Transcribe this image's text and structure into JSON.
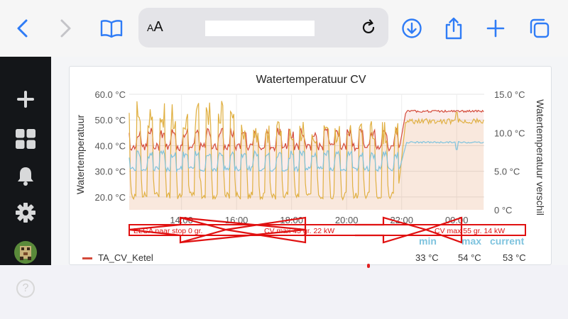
{
  "browser": {
    "aa_label": "AA",
    "url": ""
  },
  "panel": {
    "title": "Watertemperatuur CV"
  },
  "annotations": {
    "a1": "ELGA naar stop 0 gr.",
    "a2": "CV max 45 gr. 22 kW",
    "a3": "CV max 55 gr. 14 kW"
  },
  "legend": {
    "headers": {
      "min": "min",
      "max": "max",
      "current": "current"
    },
    "items": [
      {
        "name": "TA_CV_Ketel",
        "min": "33 °C",
        "max": "54 °C",
        "current": "53 °C",
        "color": "#d44a3a"
      }
    ]
  },
  "chart_data": {
    "type": "line",
    "title": "Watertemperatuur CV",
    "ylabel": "Watertemperatuur",
    "y2label": "Watertemperatuur verschil",
    "ylim": [
      15,
      60
    ],
    "y2lim": [
      0,
      15
    ],
    "yticks": [
      "20.0 °C",
      "30.0 °C",
      "40.0 °C",
      "50.0 °C",
      "60.0 °C"
    ],
    "y2ticks": [
      "0 °C",
      "5.0 °C",
      "10.0 °C",
      "15.0 °C"
    ],
    "xticks": [
      "14:00",
      "16:00",
      "18:00",
      "20:00",
      "22:00",
      "00:00"
    ],
    "xrange_hours": [
      12.1,
      25.0
    ],
    "series": [
      {
        "name": "TA_CV_Ketel",
        "color": "#d44a3a",
        "note": "oscillating ~37-45 then ~53 after 22:00"
      },
      {
        "color": "#e0b042"
      },
      {
        "color": "#7ec3de"
      }
    ],
    "grid": true
  }
}
